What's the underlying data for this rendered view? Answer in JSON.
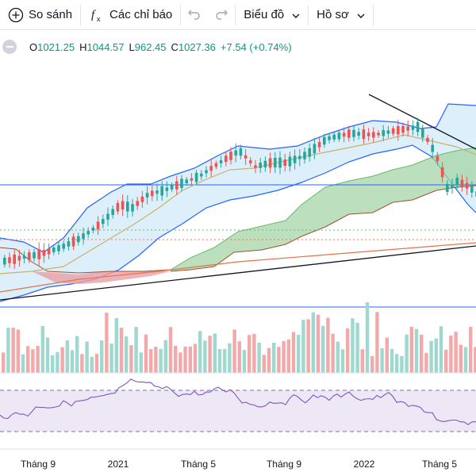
{
  "toolbar": {
    "compare_label": "So sánh",
    "indicators_label": "Các chỉ báo",
    "chart_type_label": "Biểu đồ",
    "profile_label": "Hồ sơ"
  },
  "ohlc": {
    "o_label": "O",
    "o_value": "1021.25",
    "h_label": "H",
    "h_value": "1044.57",
    "l_label": "L",
    "l_value": "962.45",
    "c_label": "C",
    "c_value": "1027.36",
    "change": "+7.54 (+0.74%)"
  },
  "x_axis": {
    "labels": [
      "Tháng 9",
      "2021",
      "Tháng 5",
      "Tháng 9",
      "2022",
      "Tháng 5"
    ]
  },
  "colors": {
    "up": "#26a69a",
    "down": "#ef5350",
    "bollinger_fill": "#d6ecfa",
    "bollinger_line": "#2962ff",
    "ichimoku_cloud_green": "#a5d6a7",
    "ichimoku_cloud_red": "#e8a0a6",
    "rsi_line": "#7e57c2",
    "rsi_fill": "#ede7f6",
    "horizontal_line": "#2962ff"
  },
  "icons": {
    "compare": "plus-circle-icon",
    "indicators": "fx-icon",
    "undo": "undo-icon",
    "redo": "redo-icon"
  }
}
